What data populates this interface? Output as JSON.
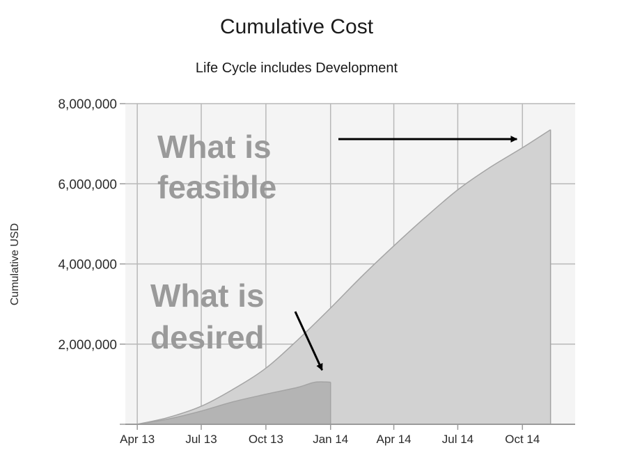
{
  "chart_data": {
    "type": "area",
    "title": "Cumulative Cost",
    "subtitle": "Life Cycle includes Development",
    "ylabel": "Cumulative USD",
    "xlabel": "",
    "ylim": [
      0,
      8000000
    ],
    "yticks": [
      0,
      2000000,
      4000000,
      6000000,
      8000000
    ],
    "ytick_labels": [
      "",
      "2,000,000",
      "4,000,000",
      "6,000,000",
      "8,000,000"
    ],
    "xlim": [
      "2013-03-15",
      "2014-12-15"
    ],
    "xticks": [
      "2013-04-01",
      "2013-07-01",
      "2013-10-01",
      "2014-01-01",
      "2014-04-01",
      "2014-07-01",
      "2014-10-01"
    ],
    "xtick_labels": [
      "Apr 13",
      "Jul 13",
      "Oct 13",
      "Jan 14",
      "Apr 14",
      "Jul 14",
      "Oct 14"
    ],
    "grid": true,
    "series": [
      {
        "color": "#d2d2d2",
        "points": [
          [
            "2013-04-01",
            0
          ],
          [
            "2013-05-15",
            170000
          ],
          [
            "2013-07-01",
            450000
          ],
          [
            "2013-08-15",
            870000
          ],
          [
            "2013-10-01",
            1400000
          ],
          [
            "2013-11-15",
            2100000
          ],
          [
            "2014-01-01",
            2900000
          ],
          [
            "2014-02-15",
            3700000
          ],
          [
            "2014-04-01",
            4450000
          ],
          [
            "2014-05-15",
            5150000
          ],
          [
            "2014-07-01",
            5850000
          ],
          [
            "2014-08-15",
            6400000
          ],
          [
            "2014-10-01",
            6900000
          ],
          [
            "2014-11-10",
            7350000
          ]
        ]
      },
      {
        "color": "#b4b4b4",
        "points": [
          [
            "2013-04-01",
            0
          ],
          [
            "2013-05-15",
            130000
          ],
          [
            "2013-07-01",
            330000
          ],
          [
            "2013-08-15",
            560000
          ],
          [
            "2013-10-01",
            750000
          ],
          [
            "2013-11-15",
            920000
          ],
          [
            "2013-12-10",
            1050000
          ],
          [
            "2014-01-01",
            1050000
          ]
        ]
      }
    ],
    "annotations": [
      {
        "lines": [
          "What is",
          "feasible"
        ],
        "arrow_to": [
          "2014-10-01",
          7100000
        ]
      },
      {
        "lines": [
          "What is",
          "desired"
        ],
        "arrow_to": [
          "2013-12-20",
          1300000
        ]
      }
    ]
  }
}
